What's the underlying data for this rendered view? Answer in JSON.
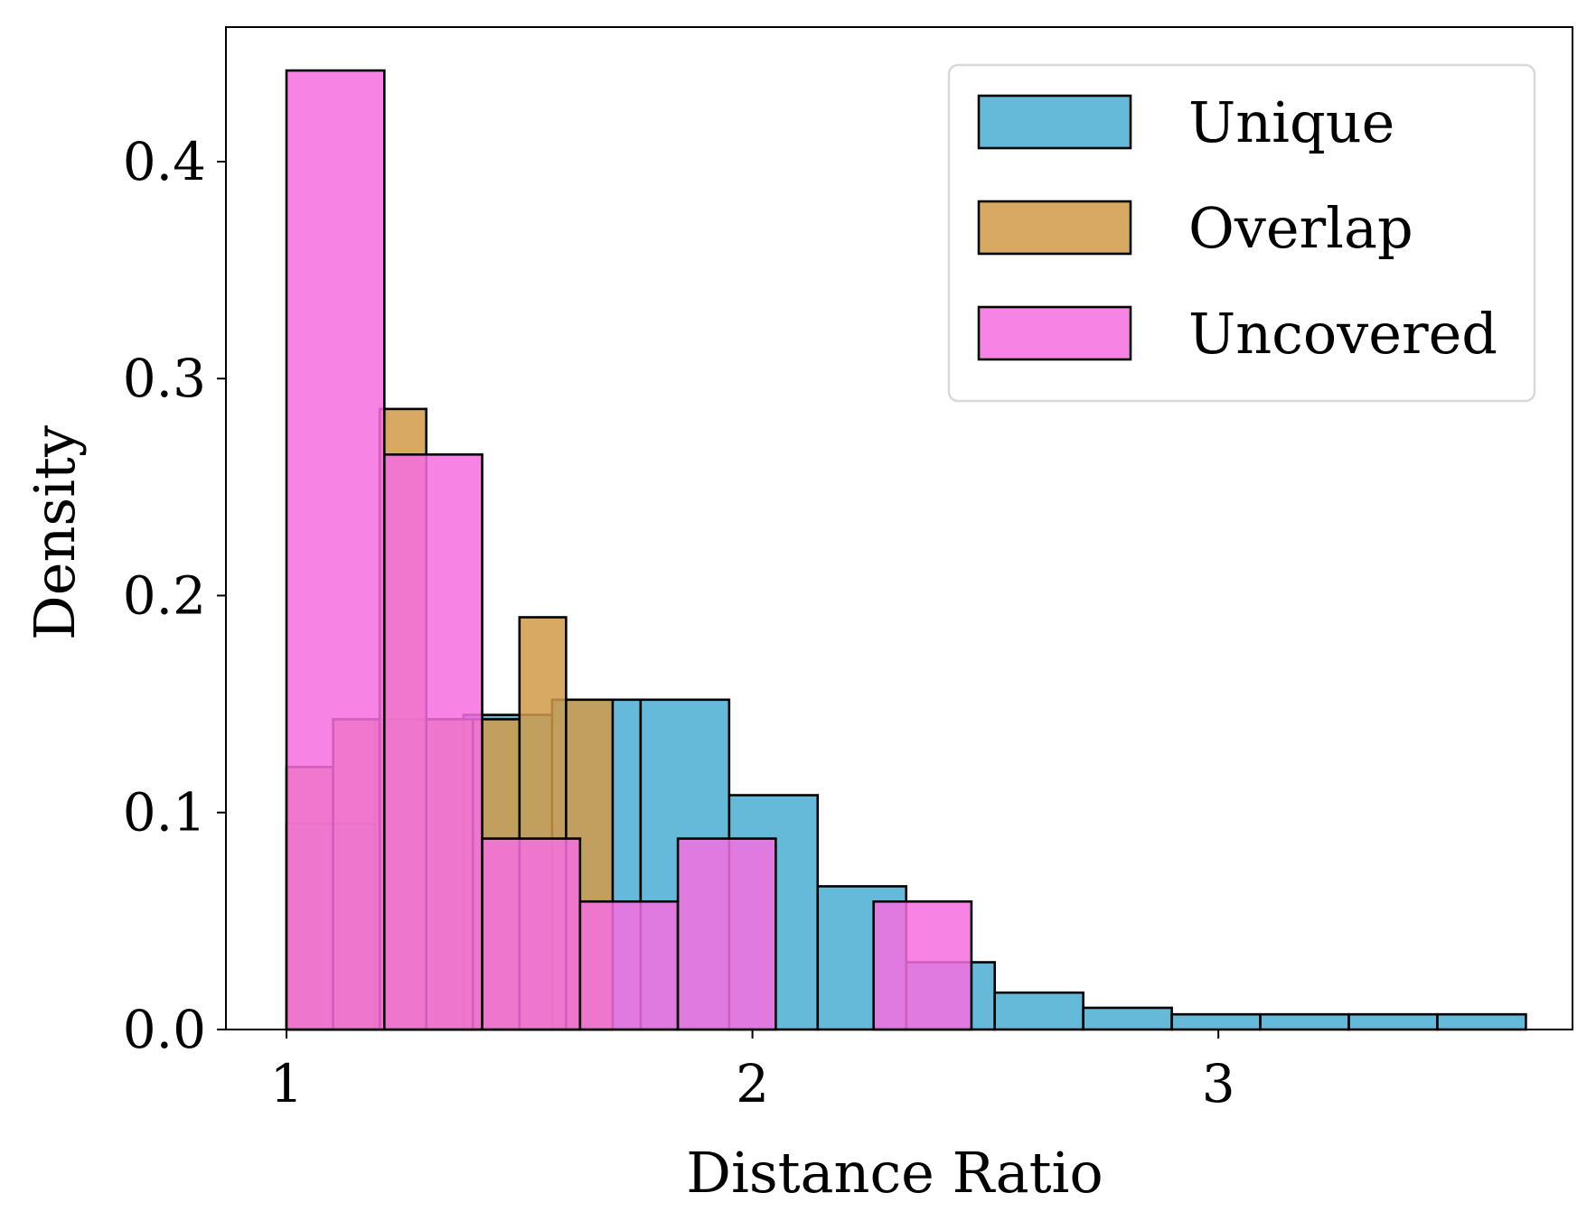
{
  "chart_data": {
    "type": "bar",
    "title": "",
    "xlabel": "Distance Ratio",
    "ylabel": "Density",
    "xlim": [
      0.87,
      3.76
    ],
    "ylim": [
      0,
      0.462
    ],
    "xticks": [
      {
        "value": 1,
        "label": "1"
      },
      {
        "value": 2,
        "label": "2"
      },
      {
        "value": 3,
        "label": "3"
      }
    ],
    "yticks": [
      {
        "value": 0.0,
        "label": "0.0"
      },
      {
        "value": 0.1,
        "label": "0.1"
      },
      {
        "value": 0.2,
        "label": "0.2"
      },
      {
        "value": 0.3,
        "label": "0.3"
      },
      {
        "value": 0.4,
        "label": "0.4"
      }
    ],
    "grid": false,
    "legend_position": "top-right",
    "series": [
      {
        "name": "Unique",
        "color": "#4AAED3",
        "bins": [
          {
            "x0": 1.0,
            "x1": 1.19,
            "value": 0.095
          },
          {
            "x0": 1.19,
            "x1": 1.38,
            "value": 0.143
          },
          {
            "x0": 1.38,
            "x1": 1.57,
            "value": 0.145
          },
          {
            "x0": 1.57,
            "x1": 1.76,
            "value": 0.152
          },
          {
            "x0": 1.76,
            "x1": 1.95,
            "value": 0.152
          },
          {
            "x0": 1.95,
            "x1": 2.14,
            "value": 0.108
          },
          {
            "x0": 2.14,
            "x1": 2.33,
            "value": 0.066
          },
          {
            "x0": 2.33,
            "x1": 2.52,
            "value": 0.031
          },
          {
            "x0": 2.52,
            "x1": 2.71,
            "value": 0.017
          },
          {
            "x0": 2.71,
            "x1": 2.9,
            "value": 0.01
          },
          {
            "x0": 2.9,
            "x1": 3.09,
            "value": 0.007
          },
          {
            "x0": 3.09,
            "x1": 3.28,
            "value": 0.007
          },
          {
            "x0": 3.28,
            "x1": 3.47,
            "value": 0.007
          },
          {
            "x0": 3.47,
            "x1": 3.66,
            "value": 0.007
          }
        ]
      },
      {
        "name": "Overlap",
        "color": "#D19A48",
        "bins": [
          {
            "x0": 1.0,
            "x1": 1.1,
            "value": 0.121
          },
          {
            "x0": 1.1,
            "x1": 1.2,
            "value": 0.143
          },
          {
            "x0": 1.2,
            "x1": 1.3,
            "value": 0.286
          },
          {
            "x0": 1.3,
            "x1": 1.4,
            "value": 0.143
          },
          {
            "x0": 1.4,
            "x1": 1.5,
            "value": 0.143
          },
          {
            "x0": 1.5,
            "x1": 1.6,
            "value": 0.19
          },
          {
            "x0": 1.6,
            "x1": 1.7,
            "value": 0.152
          }
        ]
      },
      {
        "name": "Uncovered",
        "color": "#F66EE0",
        "bins": [
          {
            "x0": 1.0,
            "x1": 1.21,
            "value": 0.442
          },
          {
            "x0": 1.21,
            "x1": 1.42,
            "value": 0.265
          },
          {
            "x0": 1.42,
            "x1": 1.63,
            "value": 0.088
          },
          {
            "x0": 1.63,
            "x1": 1.84,
            "value": 0.059
          },
          {
            "x0": 1.84,
            "x1": 2.05,
            "value": 0.088
          },
          {
            "x0": 2.05,
            "x1": 2.26,
            "value": 0.0
          },
          {
            "x0": 2.26,
            "x1": 2.47,
            "value": 0.059
          }
        ]
      }
    ]
  }
}
